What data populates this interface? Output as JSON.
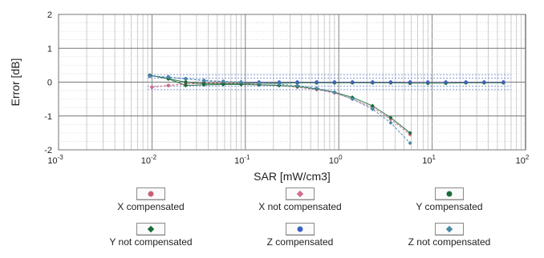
{
  "chart_data": {
    "type": "scatter",
    "xlabel": "SAR [mW/cm3]",
    "ylabel": "Error [dB]",
    "xscale": "log",
    "xlim": [
      0.001,
      100
    ],
    "ylim": [
      -2,
      2
    ],
    "xticks": [
      {
        "base": "10",
        "exp": "-3"
      },
      {
        "base": "10",
        "exp": "-2"
      },
      {
        "base": "10",
        "exp": "-1"
      },
      {
        "base": "10",
        "exp": "0"
      },
      {
        "base": "10",
        "exp": "1"
      },
      {
        "base": "10",
        "exp": "2"
      }
    ],
    "yticks": [
      "-2",
      "-1",
      "0",
      "1",
      "2"
    ],
    "grid": true,
    "legend_position": "bottom",
    "series": [
      {
        "name": "X compensated",
        "color": "#c8607a",
        "marker": "circle",
        "dashed": true,
        "x": [
          0.01,
          0.015,
          0.023,
          0.036,
          0.058,
          0.09,
          0.14,
          0.23,
          0.36,
          0.58,
          0.9,
          1.4,
          2.3,
          3.6,
          5.8,
          9,
          14,
          23,
          36,
          58
        ],
        "y": [
          -0.15,
          -0.1,
          -0.05,
          -0.03,
          -0.02,
          -0.02,
          -0.01,
          -0.01,
          0.0,
          0.0,
          0.0,
          0.0,
          0.0,
          0.0,
          0.0,
          0.0,
          0.0,
          0.0,
          0.0,
          0.0
        ]
      },
      {
        "name": "X not compensated",
        "color": "#d0708c",
        "marker": "diamond",
        "dashed": true,
        "x": [
          0.01,
          0.015,
          0.023,
          0.036,
          0.058,
          0.09,
          0.14,
          0.23,
          0.36,
          0.58,
          0.9,
          1.4,
          2.3,
          3.6,
          5.8
        ],
        "y": [
          -0.15,
          -0.1,
          -0.05,
          -0.04,
          -0.04,
          -0.05,
          -0.07,
          -0.1,
          -0.15,
          -0.22,
          -0.32,
          -0.5,
          -0.75,
          -1.1,
          -1.55
        ]
      },
      {
        "name": "Y compensated",
        "color": "#1a6b3a",
        "marker": "circle",
        "dashed": false,
        "x": [
          0.0095,
          0.015,
          0.023,
          0.036,
          0.058,
          0.09,
          0.14,
          0.23,
          0.36,
          0.58,
          0.9,
          1.4,
          2.3,
          3.6,
          5.8,
          9,
          14,
          23,
          36,
          58
        ],
        "y": [
          0.2,
          0.1,
          0.0,
          -0.05,
          -0.05,
          -0.04,
          -0.03,
          -0.03,
          -0.02,
          -0.02,
          -0.02,
          -0.02,
          -0.02,
          -0.02,
          -0.03,
          -0.03,
          -0.03,
          -0.02,
          -0.02,
          -0.02
        ]
      },
      {
        "name": "Y not compensated",
        "color": "#1a6b3a",
        "marker": "diamond",
        "dashed": false,
        "x": [
          0.0095,
          0.015,
          0.023,
          0.036,
          0.058,
          0.09,
          0.14,
          0.23,
          0.36,
          0.58,
          0.9,
          1.4,
          2.3,
          3.6,
          5.8
        ],
        "y": [
          0.2,
          0.1,
          -0.1,
          -0.08,
          -0.07,
          -0.07,
          -0.08,
          -0.1,
          -0.13,
          -0.2,
          -0.3,
          -0.45,
          -0.7,
          -1.05,
          -1.5
        ]
      },
      {
        "name": "Z compensated",
        "color": "#3a62c0",
        "marker": "circle",
        "dashed": true,
        "x": [
          0.0095,
          0.015,
          0.023,
          0.036,
          0.058,
          0.09,
          0.14,
          0.23,
          0.36,
          0.58,
          0.9,
          1.4,
          2.3,
          3.6,
          5.8,
          9,
          14,
          23,
          36,
          58
        ],
        "y": [
          0.18,
          0.15,
          0.1,
          0.05,
          0.02,
          0.0,
          0.0,
          0.0,
          0.0,
          0.0,
          0.0,
          0.0,
          0.0,
          0.0,
          0.0,
          0.0,
          0.0,
          0.0,
          0.0,
          0.0
        ]
      },
      {
        "name": "Z not compensated",
        "color": "#4a8aa8",
        "marker": "diamond",
        "dashed": true,
        "x": [
          0.0095,
          0.015,
          0.023,
          0.036,
          0.058,
          0.09,
          0.14,
          0.23,
          0.36,
          0.58,
          0.9,
          1.4,
          2.3,
          3.6,
          5.8
        ],
        "y": [
          0.18,
          0.14,
          0.1,
          0.05,
          0.02,
          0.0,
          -0.03,
          -0.06,
          -0.1,
          -0.18,
          -0.3,
          -0.5,
          -0.8,
          -1.2,
          -1.8
        ]
      }
    ]
  }
}
